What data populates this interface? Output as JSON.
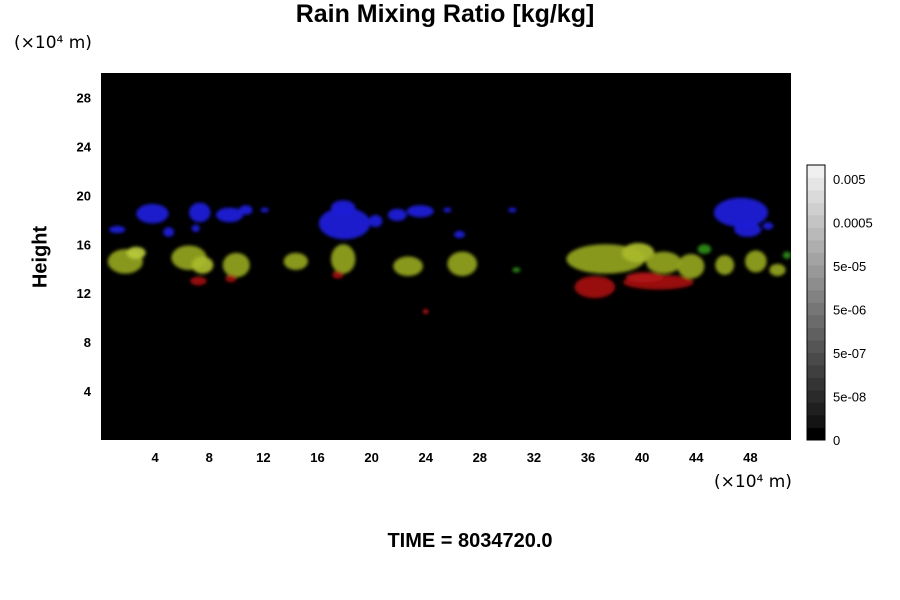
{
  "chart_data": {
    "type": "heatmap",
    "title": "Rain Mixing Ratio [kg/kg]",
    "ylabel": "Height",
    "x_unit": "(×10⁴ m)",
    "y_unit": "(×10⁴ m)",
    "xlim": [
      0,
      51
    ],
    "ylim": [
      0,
      30
    ],
    "xticks": [
      4,
      8,
      12,
      16,
      20,
      24,
      28,
      32,
      36,
      40,
      44,
      48
    ],
    "yticks": [
      4,
      8,
      12,
      16,
      20,
      24,
      28
    ],
    "background": "#000000",
    "colorbar": {
      "scale": "log",
      "tick_labels": [
        "0.005",
        "0.0005",
        "5e-05",
        "5e-06",
        "5e-07",
        "5e-08",
        "0"
      ],
      "colors": [
        "#000000",
        "#141414",
        "#1f1f1f",
        "#2a2a2a",
        "#343434",
        "#3f3f3f",
        "#4a4a4a",
        "#555555",
        "#606060",
        "#6b6b6b",
        "#767676",
        "#828282",
        "#8d8d8d",
        "#989898",
        "#a3a3a3",
        "#aeaeae",
        "#b9b9b9",
        "#c4c4c4",
        "#cfcfcf",
        "#dadada",
        "#e5e5e5",
        "#f0f0f0"
      ]
    },
    "features": [
      {
        "x": 1.2,
        "y": 17.2,
        "rx": 0.6,
        "ry": 0.3,
        "color": "#1a1ad8"
      },
      {
        "x": 3.8,
        "y": 18.5,
        "rx": 1.2,
        "ry": 0.8,
        "color": "#1a1ad8"
      },
      {
        "x": 5.0,
        "y": 17.0,
        "rx": 0.4,
        "ry": 0.4,
        "color": "#1a1ad8"
      },
      {
        "x": 7.3,
        "y": 18.6,
        "rx": 0.8,
        "ry": 0.8,
        "color": "#1a1ad8"
      },
      {
        "x": 7.0,
        "y": 17.3,
        "rx": 0.3,
        "ry": 0.3,
        "color": "#1a1ad8"
      },
      {
        "x": 9.5,
        "y": 18.4,
        "rx": 1.0,
        "ry": 0.6,
        "color": "#1a1ad8"
      },
      {
        "x": 10.7,
        "y": 18.8,
        "rx": 0.5,
        "ry": 0.4,
        "color": "#1a1ad8"
      },
      {
        "x": 12.1,
        "y": 18.8,
        "rx": 0.3,
        "ry": 0.2,
        "color": "#1a1ad8"
      },
      {
        "x": 18.0,
        "y": 17.7,
        "rx": 1.9,
        "ry": 1.3,
        "color": "#1a1ad8"
      },
      {
        "x": 17.9,
        "y": 19.0,
        "rx": 0.9,
        "ry": 0.6,
        "color": "#1a1ad8"
      },
      {
        "x": 20.3,
        "y": 17.9,
        "rx": 0.5,
        "ry": 0.5,
        "color": "#1a1ad8"
      },
      {
        "x": 21.9,
        "y": 18.4,
        "rx": 0.7,
        "ry": 0.5,
        "color": "#1a1ad8"
      },
      {
        "x": 23.6,
        "y": 18.7,
        "rx": 1.0,
        "ry": 0.5,
        "color": "#1a1ad8"
      },
      {
        "x": 25.6,
        "y": 18.8,
        "rx": 0.3,
        "ry": 0.2,
        "color": "#1a1ad8"
      },
      {
        "x": 26.5,
        "y": 16.8,
        "rx": 0.4,
        "ry": 0.3,
        "color": "#1a1ad8"
      },
      {
        "x": 30.4,
        "y": 18.8,
        "rx": 0.3,
        "ry": 0.2,
        "color": "#1a1ad8"
      },
      {
        "x": 47.3,
        "y": 18.6,
        "rx": 2.0,
        "ry": 1.2,
        "color": "#1a1ad8"
      },
      {
        "x": 47.8,
        "y": 17.2,
        "rx": 1.0,
        "ry": 0.6,
        "color": "#1a1ad8"
      },
      {
        "x": 49.3,
        "y": 17.5,
        "rx": 0.4,
        "ry": 0.3,
        "color": "#1a1ad8"
      },
      {
        "x": 1.8,
        "y": 14.6,
        "rx": 1.3,
        "ry": 1.0,
        "color": "#8fa020"
      },
      {
        "x": 2.6,
        "y": 15.3,
        "rx": 0.7,
        "ry": 0.5,
        "color": "#b6c83a"
      },
      {
        "x": 6.5,
        "y": 14.9,
        "rx": 1.3,
        "ry": 1.0,
        "color": "#8fa020"
      },
      {
        "x": 7.5,
        "y": 14.3,
        "rx": 0.8,
        "ry": 0.7,
        "color": "#a9b82c"
      },
      {
        "x": 10.0,
        "y": 14.3,
        "rx": 1.0,
        "ry": 1.0,
        "color": "#8fa020"
      },
      {
        "x": 14.4,
        "y": 14.6,
        "rx": 0.9,
        "ry": 0.7,
        "color": "#8fa020"
      },
      {
        "x": 17.9,
        "y": 14.8,
        "rx": 0.9,
        "ry": 1.2,
        "color": "#8fa020"
      },
      {
        "x": 22.7,
        "y": 14.2,
        "rx": 1.1,
        "ry": 0.8,
        "color": "#8fa020"
      },
      {
        "x": 26.7,
        "y": 14.4,
        "rx": 1.1,
        "ry": 1.0,
        "color": "#8fa020"
      },
      {
        "x": 30.7,
        "y": 13.9,
        "rx": 0.3,
        "ry": 0.2,
        "color": "#2a8a14"
      },
      {
        "x": 37.3,
        "y": 14.8,
        "rx": 2.9,
        "ry": 1.2,
        "color": "#8fa020"
      },
      {
        "x": 39.7,
        "y": 15.3,
        "rx": 1.2,
        "ry": 0.8,
        "color": "#a9b82c"
      },
      {
        "x": 41.6,
        "y": 14.5,
        "rx": 1.3,
        "ry": 0.9,
        "color": "#8fa020"
      },
      {
        "x": 43.6,
        "y": 14.2,
        "rx": 1.0,
        "ry": 1.0,
        "color": "#8fa020"
      },
      {
        "x": 44.6,
        "y": 15.6,
        "rx": 0.5,
        "ry": 0.4,
        "color": "#2a8a14"
      },
      {
        "x": 46.1,
        "y": 14.3,
        "rx": 0.7,
        "ry": 0.8,
        "color": "#8fa020"
      },
      {
        "x": 48.4,
        "y": 14.6,
        "rx": 0.8,
        "ry": 0.9,
        "color": "#8fa020"
      },
      {
        "x": 50.0,
        "y": 13.9,
        "rx": 0.6,
        "ry": 0.5,
        "color": "#8fa020"
      },
      {
        "x": 50.7,
        "y": 15.1,
        "rx": 0.3,
        "ry": 0.3,
        "color": "#2a8a14"
      },
      {
        "x": 7.2,
        "y": 13.0,
        "rx": 0.6,
        "ry": 0.35,
        "color": "#a01212"
      },
      {
        "x": 9.6,
        "y": 13.2,
        "rx": 0.4,
        "ry": 0.3,
        "color": "#a01212"
      },
      {
        "x": 17.5,
        "y": 13.5,
        "rx": 0.4,
        "ry": 0.3,
        "color": "#a01212"
      },
      {
        "x": 24.0,
        "y": 10.5,
        "rx": 0.2,
        "ry": 0.2,
        "color": "#c01818"
      },
      {
        "x": 36.5,
        "y": 12.5,
        "rx": 1.5,
        "ry": 0.9,
        "color": "#a01212"
      },
      {
        "x": 41.2,
        "y": 12.9,
        "rx": 2.6,
        "ry": 0.6,
        "color": "#a01212"
      },
      {
        "x": 40.2,
        "y": 13.3,
        "rx": 1.4,
        "ry": 0.4,
        "color": "#b01515"
      }
    ]
  },
  "footer": {
    "time_label": "TIME = 8034720.0"
  }
}
